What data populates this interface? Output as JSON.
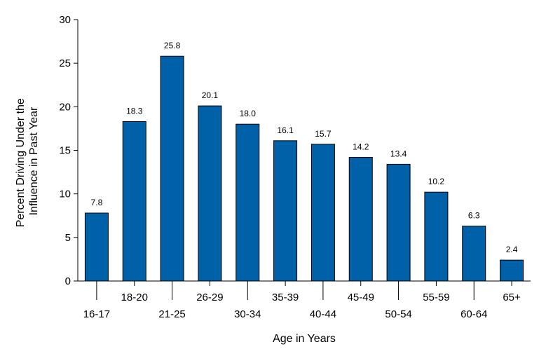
{
  "chart_data": {
    "type": "bar",
    "categories": [
      "16-17",
      "18-20",
      "21-25",
      "26-29",
      "30-34",
      "35-39",
      "40-44",
      "45-49",
      "50-54",
      "55-59",
      "60-64",
      "65+"
    ],
    "values": [
      7.8,
      18.3,
      25.8,
      20.1,
      18.0,
      16.1,
      15.7,
      14.2,
      13.4,
      10.2,
      6.3,
      2.4
    ],
    "data_labels": [
      "7.8",
      "18.3",
      "25.8",
      "20.1",
      "18.0",
      "16.1",
      "15.7",
      "14.2",
      "13.4",
      "10.2",
      "6.3",
      "2.4"
    ],
    "xlabel": "Age in Years",
    "ylabel_lines": [
      "Percent Driving Under the",
      "Influence in Past Year"
    ],
    "ylim": [
      0,
      30
    ],
    "yticks": [
      0,
      5,
      10,
      15,
      20,
      25,
      30
    ],
    "grid": false,
    "legend": "none",
    "bar_color": "#0060a8"
  }
}
